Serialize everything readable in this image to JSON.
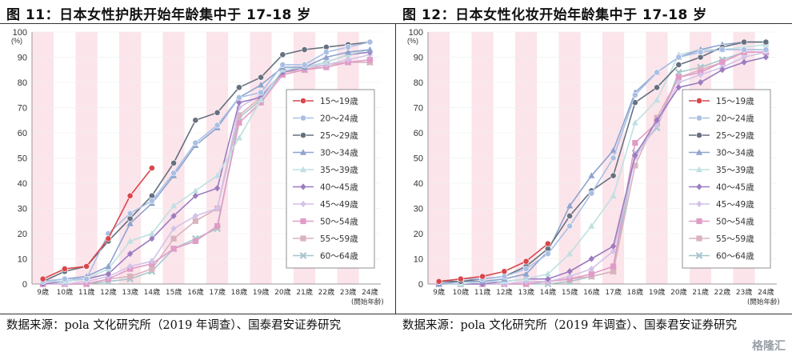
{
  "panels": [
    {
      "title": "图 11：日本女性护肤开始年龄集中于 17-18 岁",
      "source": "数据来源：pola 文化研究所（2019 年调查）、国泰君安证券研究",
      "chart_data": {
        "type": "line",
        "y_unit_label": "(%)",
        "ylim": [
          0,
          100
        ],
        "yticks": [
          0,
          10,
          20,
          30,
          40,
          50,
          60,
          70,
          80,
          90,
          100
        ],
        "categories": [
          "9歳",
          "10歳",
          "11歳",
          "12歳",
          "13歳",
          "14歳",
          "15歳",
          "16歳",
          "17歳",
          "18歳",
          "19歳",
          "20歳",
          "21歳",
          "22歳",
          "23歳",
          "24歳"
        ],
        "x_note": "(開始年齢)",
        "legend_position": "right",
        "series": [
          {
            "name": "15～19歳",
            "color": "#d9464b",
            "marker": "circle",
            "values": [
              2,
              6,
              7,
              18,
              35,
              46,
              null,
              null,
              null,
              null,
              null,
              null,
              null,
              null,
              null,
              null
            ]
          },
          {
            "name": "20～24歳",
            "color": "#a9bfe4",
            "marker": "circle",
            "values": [
              1,
              2,
              2,
              20,
              28,
              33,
              44,
              56,
              63,
              74,
              76,
              87,
              87,
              92,
              94,
              96
            ]
          },
          {
            "name": "25～29歳",
            "color": "#66707f",
            "marker": "circle",
            "values": [
              1,
              5,
              7,
              17,
              26,
              35,
              48,
              65,
              68,
              78,
              82,
              91,
              93,
              94,
              95,
              96
            ]
          },
          {
            "name": "30～34歳",
            "color": "#8ea4cf",
            "marker": "triangle",
            "values": [
              1,
              2,
              3,
              7,
              24,
              32,
              43,
              55,
              62,
              74,
              79,
              86,
              86,
              90,
              92,
              93
            ]
          },
          {
            "name": "35～39歳",
            "color": "#bfe0e2",
            "marker": "triangle",
            "values": [
              1,
              1,
              2,
              6,
              17,
              20,
              31,
              37,
              43,
              58,
              73,
              85,
              86,
              88,
              91,
              93
            ]
          },
          {
            "name": "40～45歳",
            "color": "#9c7cc0",
            "marker": "diamond",
            "values": [
              0,
              1,
              2,
              4,
              12,
              18,
              27,
              35,
              38,
              72,
              74,
              84,
              86,
              88,
              91,
              92
            ]
          },
          {
            "name": "45～49歳",
            "color": "#d3c2e8",
            "marker": "diamond",
            "values": [
              0,
              0,
              1,
              3,
              7,
              9,
              22,
              27,
              30,
              70,
              75,
              84,
              86,
              87,
              89,
              91
            ]
          },
          {
            "name": "50～54歳",
            "color": "#e09cc7",
            "marker": "square",
            "values": [
              0,
              0,
              0,
              2,
              6,
              8,
              14,
              17,
              23,
              64,
              72,
              83,
              85,
              86,
              88,
              89
            ]
          },
          {
            "name": "55～59歳",
            "color": "#dab3bf",
            "marker": "square",
            "values": [
              0,
              0,
              0,
              2,
              3,
              6,
              18,
              25,
              30,
              67,
              74,
              84,
              85,
              87,
              88,
              88
            ]
          },
          {
            "name": "60～64歳",
            "color": "#a7c6cb",
            "marker": "cross",
            "values": [
              0,
              0,
              0,
              1,
              2,
              5,
              14,
              18,
              22,
              66,
              73,
              84,
              85,
              87,
              88,
              88
            ]
          }
        ]
      }
    },
    {
      "title": "图 12：日本女性化妆开始年龄集中于 17-18 岁",
      "source": "数据来源：pola 文化研究所（2019 年调查）、国泰君安证券研究",
      "chart_data": {
        "type": "line",
        "y_unit_label": "(%)",
        "ylim": [
          0,
          100
        ],
        "yticks": [
          0,
          10,
          20,
          30,
          40,
          50,
          60,
          70,
          80,
          90,
          100
        ],
        "categories": [
          "9歳",
          "10歳",
          "11歳",
          "12歳",
          "13歳",
          "14歳",
          "15歳",
          "16歳",
          "17歳",
          "18歳",
          "19歳",
          "20歳",
          "21歳",
          "22歳",
          "23歳",
          "24歳"
        ],
        "x_note": "(開始年齢)",
        "legend_position": "right",
        "series": [
          {
            "name": "15～19歳",
            "color": "#d9464b",
            "marker": "circle",
            "values": [
              1,
              2,
              3,
              5,
              9,
              16,
              null,
              null,
              null,
              null,
              null,
              null,
              null,
              null,
              null,
              null
            ]
          },
          {
            "name": "20～24歳",
            "color": "#a9bfe4",
            "marker": "circle",
            "values": [
              1,
              2,
              2,
              3,
              6,
              12,
              23,
              36,
              50,
              75,
              84,
              90,
              92,
              93,
              93,
              93
            ]
          },
          {
            "name": "25～29歳",
            "color": "#66707f",
            "marker": "circle",
            "values": [
              1,
              1,
              2,
              3,
              7,
              14,
              27,
              37,
              43,
              72,
              78,
              87,
              90,
              94,
              96,
              96
            ]
          },
          {
            "name": "30～34歳",
            "color": "#8ea4cf",
            "marker": "triangle",
            "values": [
              0,
              1,
              1,
              2,
              4,
              13,
              31,
              43,
              53,
              76,
              84,
              90,
              93,
              95,
              96,
              96
            ]
          },
          {
            "name": "35～39歳",
            "color": "#bfe0e2",
            "marker": "triangle",
            "values": [
              0,
              0,
              1,
              1,
              2,
              4,
              12,
              23,
              35,
              64,
              73,
              91,
              93,
              93,
              94,
              95
            ]
          },
          {
            "name": "40～45歳",
            "color": "#9c7cc0",
            "marker": "diamond",
            "values": [
              0,
              0,
              0,
              1,
              2,
              2,
              5,
              10,
              15,
              51,
              65,
              78,
              80,
              85,
              88,
              90
            ]
          },
          {
            "name": "45～49歳",
            "color": "#d3c2e8",
            "marker": "diamond",
            "values": [
              0,
              0,
              0,
              0,
              1,
              1,
              3,
              6,
              13,
              50,
              63,
              80,
              83,
              86,
              90,
              92
            ]
          },
          {
            "name": "50～54歳",
            "color": "#e09cc7",
            "marker": "square",
            "values": [
              0,
              0,
              0,
              0,
              0,
              1,
              2,
              4,
              7,
              56,
              64,
              82,
              84,
              88,
              92,
              92
            ]
          },
          {
            "name": "55～59歳",
            "color": "#dab3bf",
            "marker": "square",
            "values": [
              0,
              0,
              0,
              0,
              0,
              1,
              2,
              3,
              5,
              47,
              66,
              82,
              85,
              88,
              92,
              92
            ]
          },
          {
            "name": "60～64歳",
            "color": "#a7c6cb",
            "marker": "cross",
            "values": [
              0,
              0,
              0,
              0,
              0,
              0,
              1,
              3,
              5,
              52,
              62,
              84,
              86,
              89,
              92,
              92
            ]
          }
        ]
      }
    }
  ],
  "watermark": "格隆汇"
}
